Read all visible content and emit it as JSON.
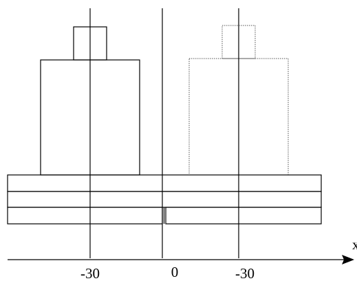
{
  "axis": {
    "label": "x",
    "ticks": [
      "-30",
      "0",
      "-30"
    ]
  }
}
